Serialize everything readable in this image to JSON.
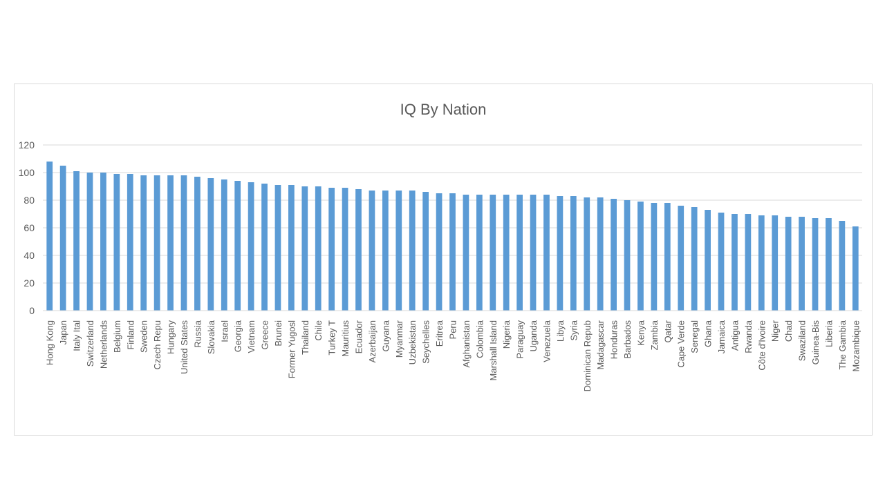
{
  "chart_data": {
    "type": "bar",
    "title": "IQ By Nation",
    "xlabel": "",
    "ylabel": "",
    "ylim": [
      0,
      120
    ],
    "yticks": [
      0,
      20,
      40,
      60,
      80,
      100,
      120
    ],
    "grid": true,
    "legend": "none",
    "bar_color": "#5b9bd5",
    "grid_color": "#d9d9d9",
    "tick_label_color": "#595959",
    "categories": [
      "Hong Kong",
      "Japan",
      "Italy Ital",
      "Switzerland",
      "Netherlands",
      "Belgium",
      "Finland",
      "Sweden",
      "Czech Repu",
      "Hungary",
      "United States",
      "Russia",
      "Slovakia",
      "Israel",
      "Georgia",
      "Vietnam",
      "Greece",
      "Brunei",
      "Former Yugosl",
      "Thailand",
      "Chile",
      "Turkey T",
      "Mauritius",
      "Ecuador",
      "Azerbaijan",
      "Guyana",
      "Myanmar",
      "Uzbekistan",
      "Seychelles",
      "Eritrea",
      "Peru",
      "Afghanistan",
      "Colombia",
      "Marshall Island",
      "Nigeria",
      "Paraguay",
      "Uganda",
      "Venezuela",
      "Libya",
      "Syria",
      "Dominican Repub",
      "Madagascar",
      "Honduras",
      "Barbados",
      "Kenya",
      "Zambia",
      "Qatar",
      "Cape Verde",
      "Senegal",
      "Ghana",
      "Jamaica",
      "Antigua",
      "Rwanda",
      "Côte d'Ivoire",
      "Niger",
      "Chad",
      "Swaziland",
      "Guinea-Bis",
      "Liberia",
      "The Gambia",
      "Mozambique"
    ],
    "values": [
      108,
      105,
      101,
      100,
      100,
      99,
      99,
      98,
      98,
      98,
      98,
      97,
      96,
      95,
      94,
      93,
      92,
      91,
      91,
      90,
      90,
      89,
      89,
      88,
      87,
      87,
      87,
      87,
      86,
      85,
      85,
      84,
      84,
      84,
      84,
      84,
      84,
      84,
      83,
      83,
      82,
      82,
      81,
      80,
      79,
      78,
      78,
      76,
      75,
      73,
      71,
      70,
      70,
      69,
      69,
      68,
      68,
      67,
      67,
      65,
      61
    ]
  }
}
